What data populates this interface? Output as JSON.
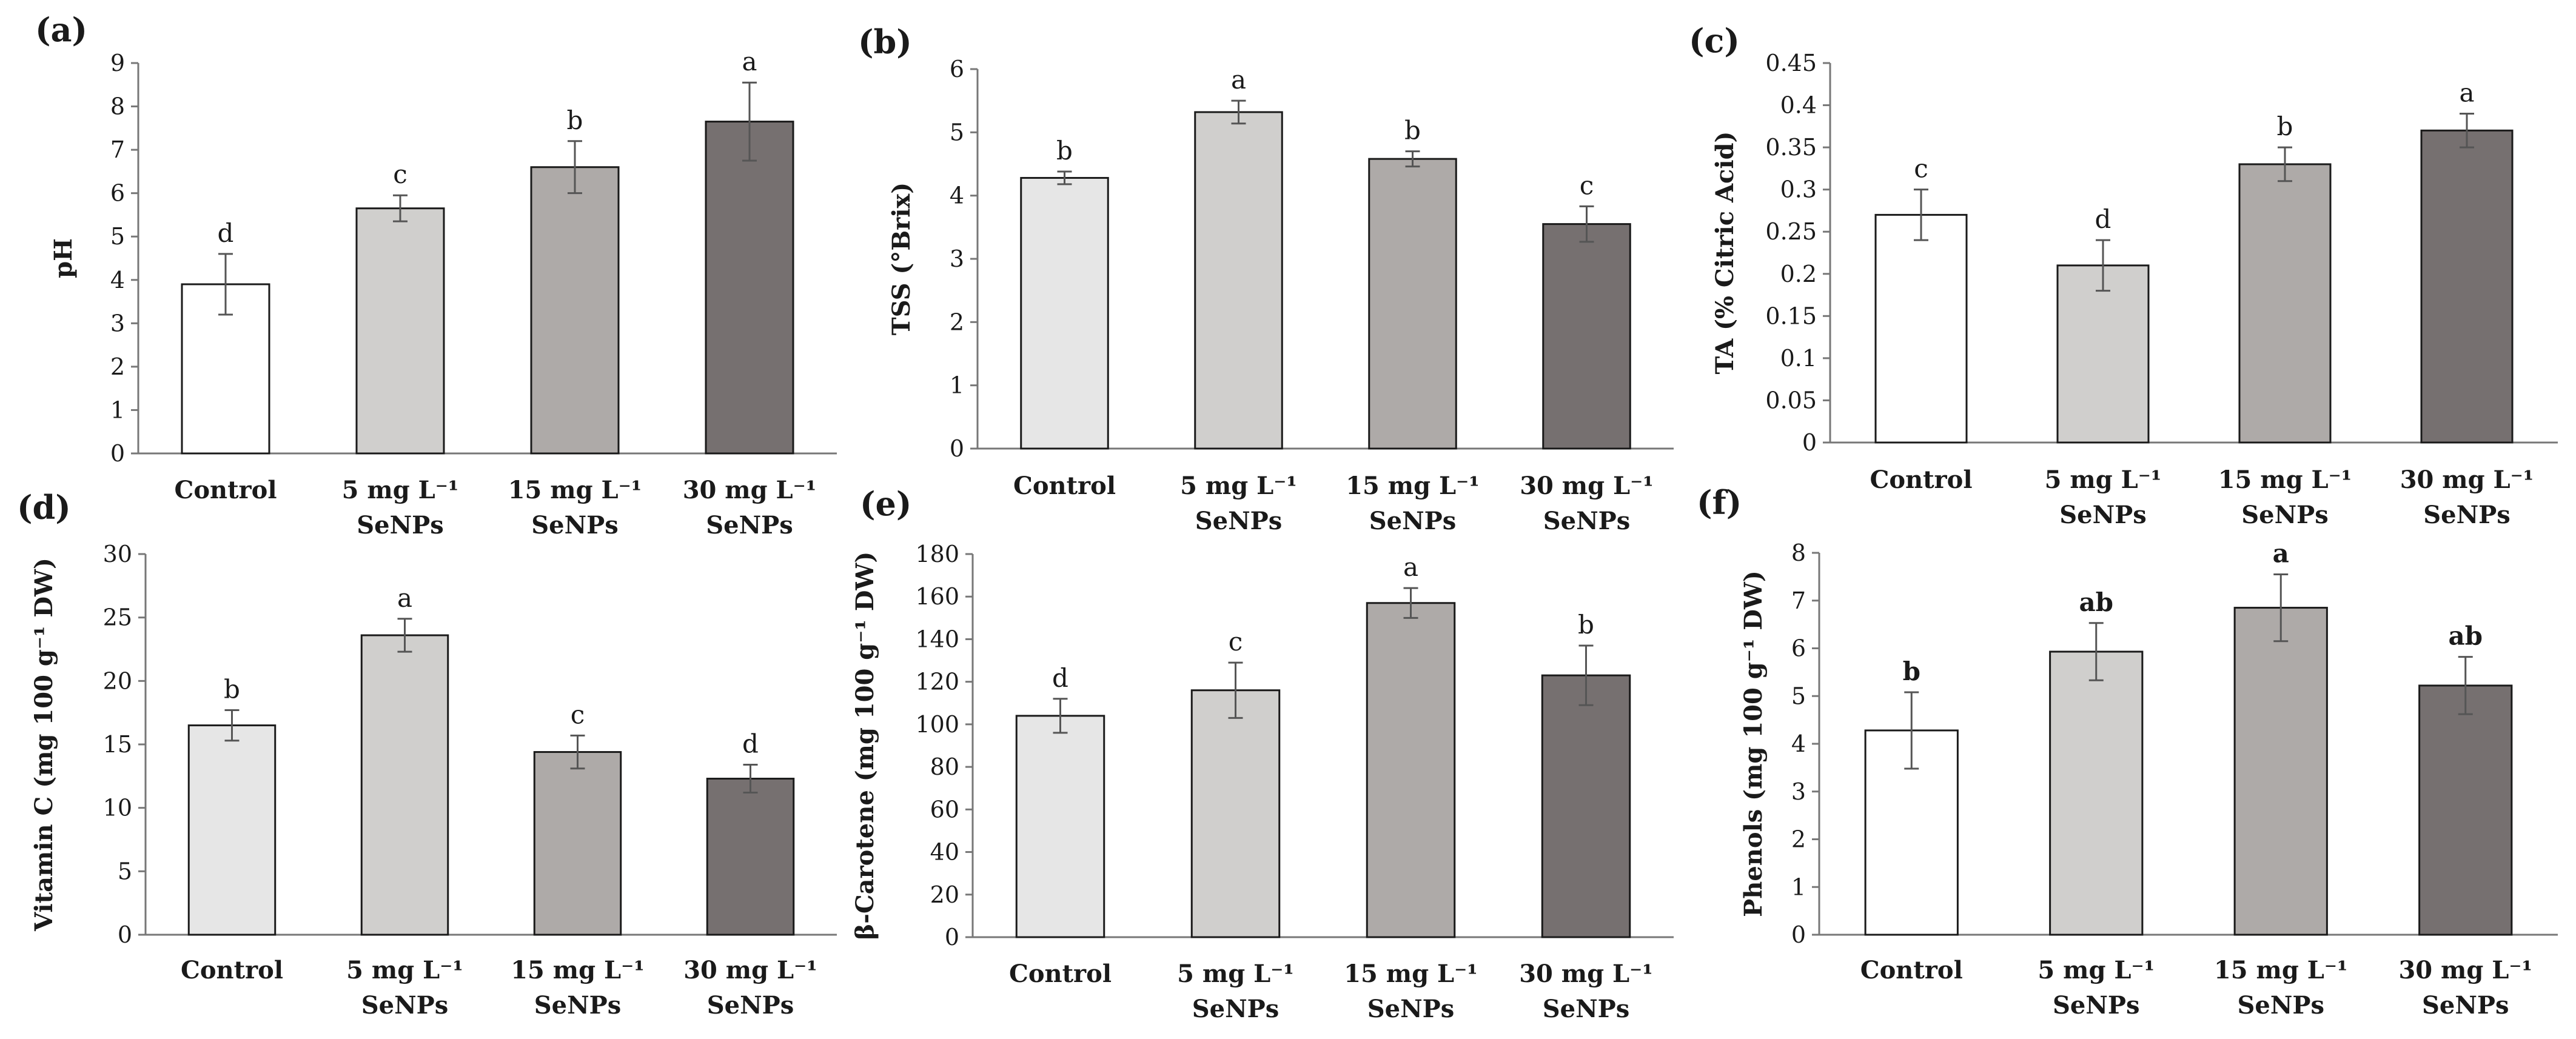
{
  "chart_data": [
    {
      "panel": "(a)",
      "type": "bar",
      "categories": [
        [
          "Control"
        ],
        [
          "5 mg L⁻¹",
          "SeNPs"
        ],
        [
          "15 mg L⁻¹",
          "SeNPs"
        ],
        [
          "30 mg L⁻¹",
          "SeNPs"
        ]
      ],
      "values": [
        3.9,
        5.65,
        6.6,
        7.65
      ],
      "errors": [
        0.7,
        0.3,
        0.6,
        0.9
      ],
      "letters": [
        "d",
        "c",
        "b",
        "a"
      ],
      "letters_bold": false,
      "ylabel": "pH",
      "ylim": [
        0,
        9
      ],
      "yticks": [
        "0",
        "1",
        "2",
        "3",
        "4",
        "5",
        "6",
        "7",
        "8",
        "9"
      ],
      "colors": [
        "#ffffff",
        "#d0cfcd",
        "#aeaaa8",
        "#767070"
      ]
    },
    {
      "panel": "(b)",
      "type": "bar",
      "categories": [
        [
          "Control"
        ],
        [
          "5 mg L⁻¹",
          "SeNPs"
        ],
        [
          "15 mg L⁻¹",
          "SeNPs"
        ],
        [
          "30 mg L⁻¹",
          "SeNPs"
        ]
      ],
      "values": [
        4.28,
        5.32,
        4.58,
        3.55
      ],
      "errors": [
        0.1,
        0.18,
        0.12,
        0.28
      ],
      "letters": [
        "b",
        "a",
        "b",
        "c"
      ],
      "letters_bold": false,
      "ylabel": "TSS (°Brix)",
      "ylim": [
        0,
        6
      ],
      "yticks": [
        "0",
        "1",
        "2",
        "3",
        "4",
        "5",
        "6"
      ],
      "colors": [
        "#e6e6e6",
        "#d0cfcd",
        "#aeaaa8",
        "#767070"
      ]
    },
    {
      "panel": "(c)",
      "type": "bar",
      "categories": [
        [
          "Control"
        ],
        [
          "5 mg L⁻¹",
          "SeNPs"
        ],
        [
          "15 mg L⁻¹",
          "SeNPs"
        ],
        [
          "30 mg L⁻¹",
          "SeNPs"
        ]
      ],
      "values": [
        0.27,
        0.21,
        0.33,
        0.37
      ],
      "errors": [
        0.03,
        0.03,
        0.02,
        0.02
      ],
      "letters": [
        "c",
        "d",
        "b",
        "a"
      ],
      "letters_bold": false,
      "ylabel": "TA (% Citric Acid)",
      "ylim": [
        0,
        0.45
      ],
      "yticks": [
        "0",
        "0.05",
        "0.1",
        "0.15",
        "0.2",
        "0.25",
        "0.3",
        "0.35",
        "0.4",
        "0.45"
      ],
      "colors": [
        "#ffffff",
        "#d0cfcd",
        "#aeaaa8",
        "#767070"
      ]
    },
    {
      "panel": "(d)",
      "type": "bar",
      "categories": [
        [
          "Control"
        ],
        [
          "5 mg L⁻¹",
          "SeNPs"
        ],
        [
          "15 mg L⁻¹",
          "SeNPs"
        ],
        [
          "30 mg L⁻¹",
          "SeNPs"
        ]
      ],
      "values": [
        16.5,
        23.6,
        14.4,
        12.3
      ],
      "errors": [
        1.2,
        1.3,
        1.3,
        1.1
      ],
      "letters": [
        "b",
        "a",
        "c",
        "d"
      ],
      "letters_bold": false,
      "ylabel": "Vitamin C (mg 100 g⁻¹ DW)",
      "ylim": [
        0,
        30
      ],
      "yticks": [
        "0",
        "5",
        "10",
        "15",
        "20",
        "25",
        "30"
      ],
      "colors": [
        "#e6e6e6",
        "#d0cfcd",
        "#aeaaa8",
        "#767070"
      ]
    },
    {
      "panel": "(e)",
      "type": "bar",
      "categories": [
        [
          "Control"
        ],
        [
          "5 mg L⁻¹",
          "SeNPs"
        ],
        [
          "15 mg L⁻¹",
          "SeNPs"
        ],
        [
          "30 mg L⁻¹",
          "SeNPs"
        ]
      ],
      "values": [
        104,
        116,
        157,
        123
      ],
      "errors": [
        8,
        13,
        7,
        14
      ],
      "letters": [
        "d",
        "c",
        "a",
        "b"
      ],
      "letters_bold": false,
      "ylabel": "β-Carotene (mg 100 g⁻¹ DW)",
      "ylim": [
        0,
        180
      ],
      "yticks": [
        "0",
        "20",
        "40",
        "60",
        "80",
        "100",
        "120",
        "140",
        "160",
        "180"
      ],
      "colors": [
        "#e6e6e6",
        "#d0cfcd",
        "#aeaaa8",
        "#767070"
      ]
    },
    {
      "panel": "(f)",
      "type": "bar",
      "categories": [
        [
          "Control"
        ],
        [
          "5 mg L⁻¹",
          "SeNPs"
        ],
        [
          "15 mg L⁻¹",
          "SeNPs"
        ],
        [
          "30 mg L⁻¹",
          "SeNPs"
        ]
      ],
      "values": [
        4.28,
        5.93,
        6.85,
        5.22
      ],
      "errors": [
        0.8,
        0.6,
        0.7,
        0.6
      ],
      "letters": [
        "b",
        "ab",
        "a",
        "ab"
      ],
      "letters_bold": true,
      "ylabel": "Phenols (mg 100 g⁻¹ DW)",
      "ylim": [
        0,
        8
      ],
      "yticks": [
        "0",
        "1",
        "2",
        "3",
        "4",
        "5",
        "6",
        "7",
        "8"
      ],
      "colors": [
        "#ffffff",
        "#d0cfcd",
        "#aeaaa8",
        "#767070"
      ]
    }
  ]
}
